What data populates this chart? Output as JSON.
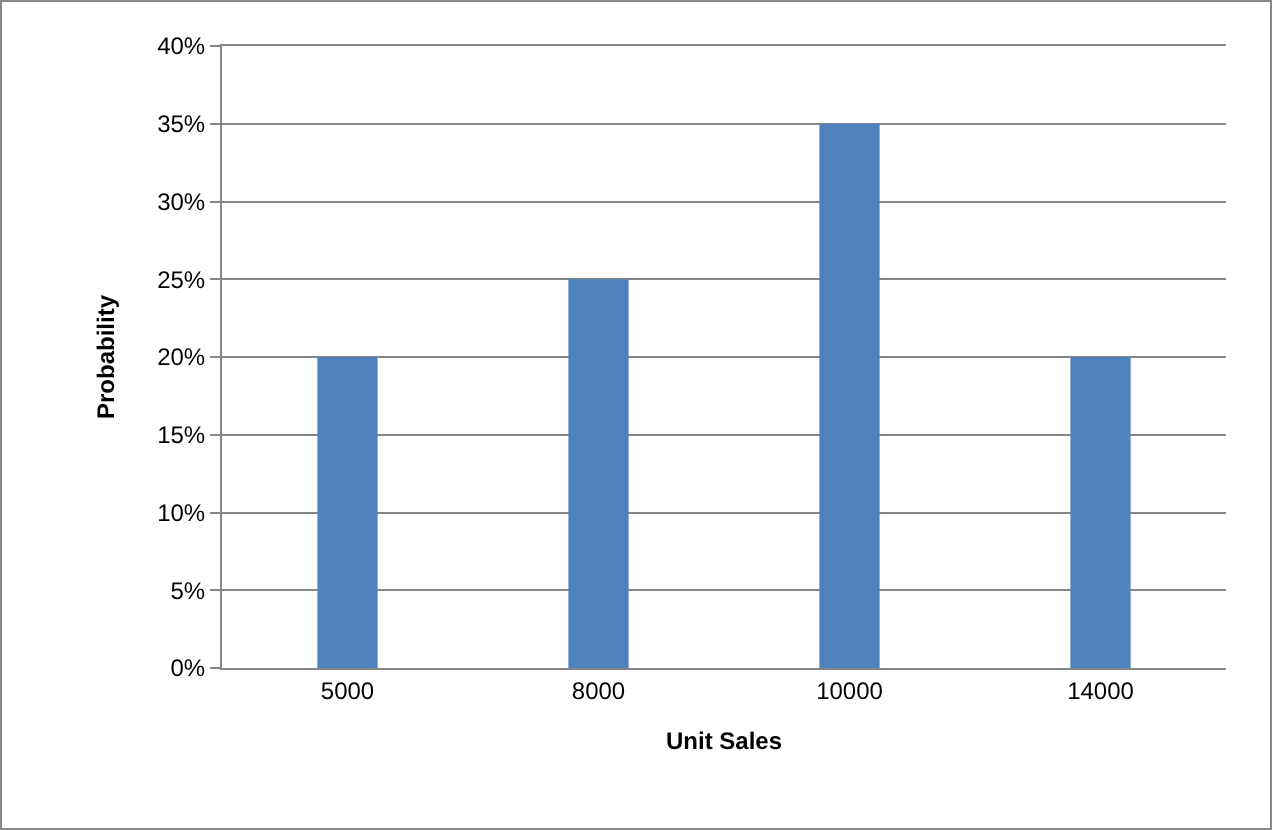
{
  "chart_data": {
    "type": "bar",
    "xlabel": "Unit Sales",
    "ylabel": "Probability",
    "categories": [
      "5000",
      "8000",
      "10000",
      "14000"
    ],
    "values": [
      20,
      25,
      35,
      20
    ],
    "color": "#4f81bd",
    "ylim": [
      0,
      40
    ],
    "yticks": [
      {
        "value": 0,
        "label": "0%"
      },
      {
        "value": 5,
        "label": "5%"
      },
      {
        "value": 10,
        "label": "10%"
      },
      {
        "value": 15,
        "label": "15%"
      },
      {
        "value": 20,
        "label": "20%"
      },
      {
        "value": 25,
        "label": "25%"
      },
      {
        "value": 30,
        "label": "30%"
      },
      {
        "value": 35,
        "label": "35%"
      },
      {
        "value": 40,
        "label": "40%"
      }
    ],
    "grid": "y"
  }
}
